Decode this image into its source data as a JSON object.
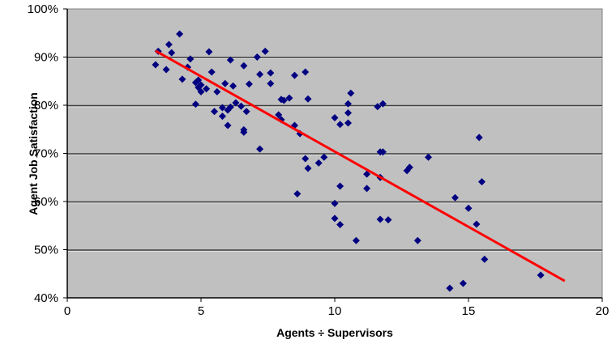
{
  "chart_data": {
    "type": "scatter",
    "title": "",
    "xlabel": "Agents ÷ Supervisors",
    "ylabel": "Agent Job Satisfaction",
    "xlim": [
      0,
      20
    ],
    "ylim": [
      40,
      100
    ],
    "x_ticks": [
      "0",
      "5",
      "10",
      "15",
      "20"
    ],
    "y_ticks": [
      "40%",
      "50%",
      "60%",
      "70%",
      "80%",
      "90%",
      "100%"
    ],
    "grid": "horizontal",
    "legend": "none",
    "marker": {
      "shape": "diamond",
      "color": "#000080"
    },
    "plot_background": "#c0c0c0",
    "trendline": {
      "color": "#ff0000",
      "x": [
        3.3,
        18.6
      ],
      "y": [
        91.3,
        43.5
      ]
    },
    "points": [
      [
        3.3,
        88.4
      ],
      [
        3.4,
        91.2
      ],
      [
        3.7,
        87.4
      ],
      [
        3.8,
        92.6
      ],
      [
        3.9,
        90.9
      ],
      [
        4.2,
        94.8
      ],
      [
        4.3,
        85.4
      ],
      [
        4.5,
        87.9
      ],
      [
        4.6,
        89.6
      ],
      [
        4.8,
        84.7
      ],
      [
        4.8,
        80.2
      ],
      [
        4.9,
        85.2
      ],
      [
        4.9,
        83.7
      ],
      [
        5.0,
        84.2
      ],
      [
        5.0,
        82.8
      ],
      [
        5.2,
        83.4
      ],
      [
        5.3,
        91.1
      ],
      [
        5.4,
        86.9
      ],
      [
        5.5,
        78.7
      ],
      [
        5.6,
        82.8
      ],
      [
        5.8,
        79.5
      ],
      [
        5.8,
        77.7
      ],
      [
        5.9,
        84.5
      ],
      [
        6.0,
        79.0
      ],
      [
        6.0,
        75.8
      ],
      [
        6.1,
        79.6
      ],
      [
        6.1,
        89.4
      ],
      [
        6.2,
        84.0
      ],
      [
        6.3,
        80.5
      ],
      [
        6.5,
        79.8
      ],
      [
        6.6,
        74.9
      ],
      [
        6.6,
        74.4
      ],
      [
        6.6,
        88.2
      ],
      [
        6.7,
        78.7
      ],
      [
        6.8,
        84.4
      ],
      [
        7.1,
        90.0
      ],
      [
        7.2,
        70.9
      ],
      [
        7.2,
        86.4
      ],
      [
        7.4,
        91.2
      ],
      [
        7.6,
        84.5
      ],
      [
        7.6,
        86.7
      ],
      [
        7.9,
        78.0
      ],
      [
        8.0,
        81.2
      ],
      [
        8.0,
        77.0
      ],
      [
        8.1,
        81.0
      ],
      [
        8.3,
        81.5
      ],
      [
        8.5,
        75.8
      ],
      [
        8.5,
        86.2
      ],
      [
        8.6,
        61.6
      ],
      [
        8.7,
        74.1
      ],
      [
        8.9,
        68.9
      ],
      [
        8.9,
        86.9
      ],
      [
        9.0,
        81.3
      ],
      [
        9.0,
        66.9
      ],
      [
        9.4,
        68.0
      ],
      [
        9.6,
        69.2
      ],
      [
        10.0,
        77.4
      ],
      [
        10.0,
        59.6
      ],
      [
        10.0,
        56.5
      ],
      [
        10.2,
        76.0
      ],
      [
        10.2,
        63.2
      ],
      [
        10.2,
        55.2
      ],
      [
        10.5,
        78.4
      ],
      [
        10.5,
        80.3
      ],
      [
        10.5,
        76.3
      ],
      [
        10.6,
        82.5
      ],
      [
        10.8,
        51.9
      ],
      [
        11.2,
        65.7
      ],
      [
        11.2,
        62.7
      ],
      [
        11.6,
        79.7
      ],
      [
        11.7,
        65.0
      ],
      [
        11.7,
        70.3
      ],
      [
        11.7,
        56.3
      ],
      [
        11.8,
        70.3
      ],
      [
        11.8,
        80.3
      ],
      [
        12.0,
        56.2
      ],
      [
        12.7,
        66.4
      ],
      [
        12.8,
        67.1
      ],
      [
        13.1,
        51.9
      ],
      [
        13.5,
        69.2
      ],
      [
        14.3,
        42.0
      ],
      [
        14.5,
        60.8
      ],
      [
        14.8,
        43.0
      ],
      [
        15.0,
        58.6
      ],
      [
        15.3,
        55.3
      ],
      [
        15.4,
        73.3
      ],
      [
        15.5,
        64.1
      ],
      [
        15.6,
        48.0
      ],
      [
        17.7,
        44.7
      ]
    ]
  }
}
